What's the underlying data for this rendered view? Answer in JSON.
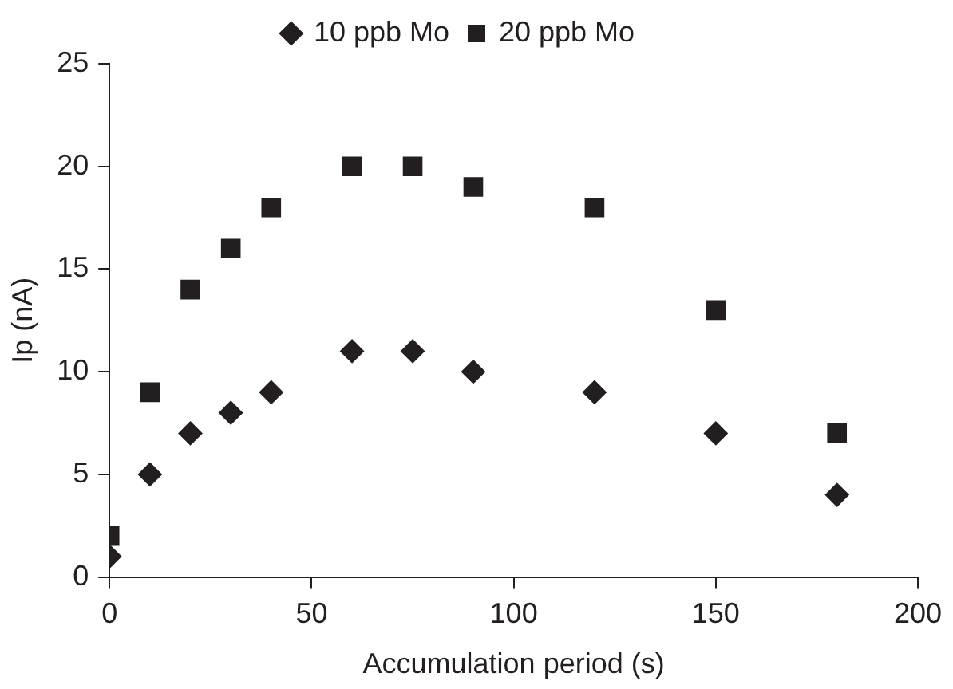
{
  "chart_data": {
    "type": "scatter",
    "xlabel": "Accumulation period (s)",
    "ylabel": "Ip (nA)",
    "x": [
      0,
      10,
      20,
      30,
      40,
      60,
      75,
      90,
      120,
      150,
      180
    ],
    "series": [
      {
        "name": "10 ppb Mo",
        "color": "#231f20",
        "marker": "diamond",
        "values": [
          1,
          5,
          7,
          8,
          9,
          11,
          11,
          10,
          9,
          7,
          4
        ]
      },
      {
        "name": "20 ppb Mo",
        "color": "#231f20",
        "marker": "square",
        "values": [
          2,
          9,
          14,
          16,
          18,
          20,
          20,
          19,
          18,
          13,
          7
        ]
      }
    ],
    "xlim": [
      0,
      200
    ],
    "xticks": [
      0,
      50,
      100,
      150,
      200
    ],
    "ylim": [
      0,
      25
    ],
    "yticks": [
      0,
      5,
      10,
      15,
      20,
      25
    ],
    "grid": false,
    "legend": "top"
  }
}
